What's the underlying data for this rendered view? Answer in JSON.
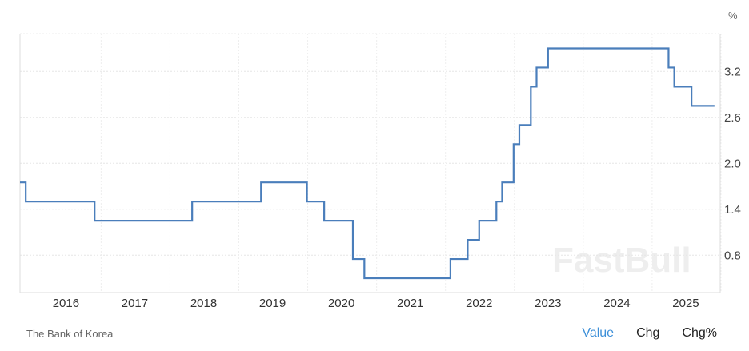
{
  "chart_data": {
    "type": "line",
    "step": true,
    "unit": "%",
    "x_ticks": [
      "2016",
      "2017",
      "2018",
      "2019",
      "2020",
      "2021",
      "2022",
      "2023",
      "2024",
      "2025"
    ],
    "y_ticks": [
      "0.8",
      "1.4",
      "2.0",
      "2.6",
      "3.2"
    ],
    "ylim": [
      0.5,
      3.65
    ],
    "xlim": [
      "2015-05",
      "2025-07"
    ],
    "grid": true,
    "color": "#4a7ebb",
    "series": [
      {
        "points": [
          [
            "2015-05",
            1.75
          ],
          [
            "2015-06",
            1.5
          ],
          [
            "2016-06",
            1.25
          ],
          [
            "2017-11",
            1.5
          ],
          [
            "2018-11",
            1.75
          ],
          [
            "2019-07",
            1.5
          ],
          [
            "2019-10",
            1.25
          ],
          [
            "2020-03",
            0.75
          ],
          [
            "2020-05",
            0.5
          ],
          [
            "2021-08",
            0.75
          ],
          [
            "2021-11",
            1.0
          ],
          [
            "2022-01",
            1.25
          ],
          [
            "2022-04",
            1.5
          ],
          [
            "2022-05",
            1.75
          ],
          [
            "2022-07",
            2.25
          ],
          [
            "2022-08",
            2.5
          ],
          [
            "2022-10",
            3.0
          ],
          [
            "2022-11",
            3.25
          ],
          [
            "2023-01",
            3.5
          ],
          [
            "2024-10",
            3.25
          ],
          [
            "2024-11",
            3.0
          ],
          [
            "2025-02",
            2.75
          ],
          [
            "2025-06",
            2.75
          ]
        ]
      }
    ]
  },
  "source": "The Bank of Korea",
  "watermark": "FastBull",
  "tabs": [
    {
      "label": "Value",
      "active": true
    },
    {
      "label": "Chg",
      "active": false
    },
    {
      "label": "Chg%",
      "active": false
    }
  ]
}
